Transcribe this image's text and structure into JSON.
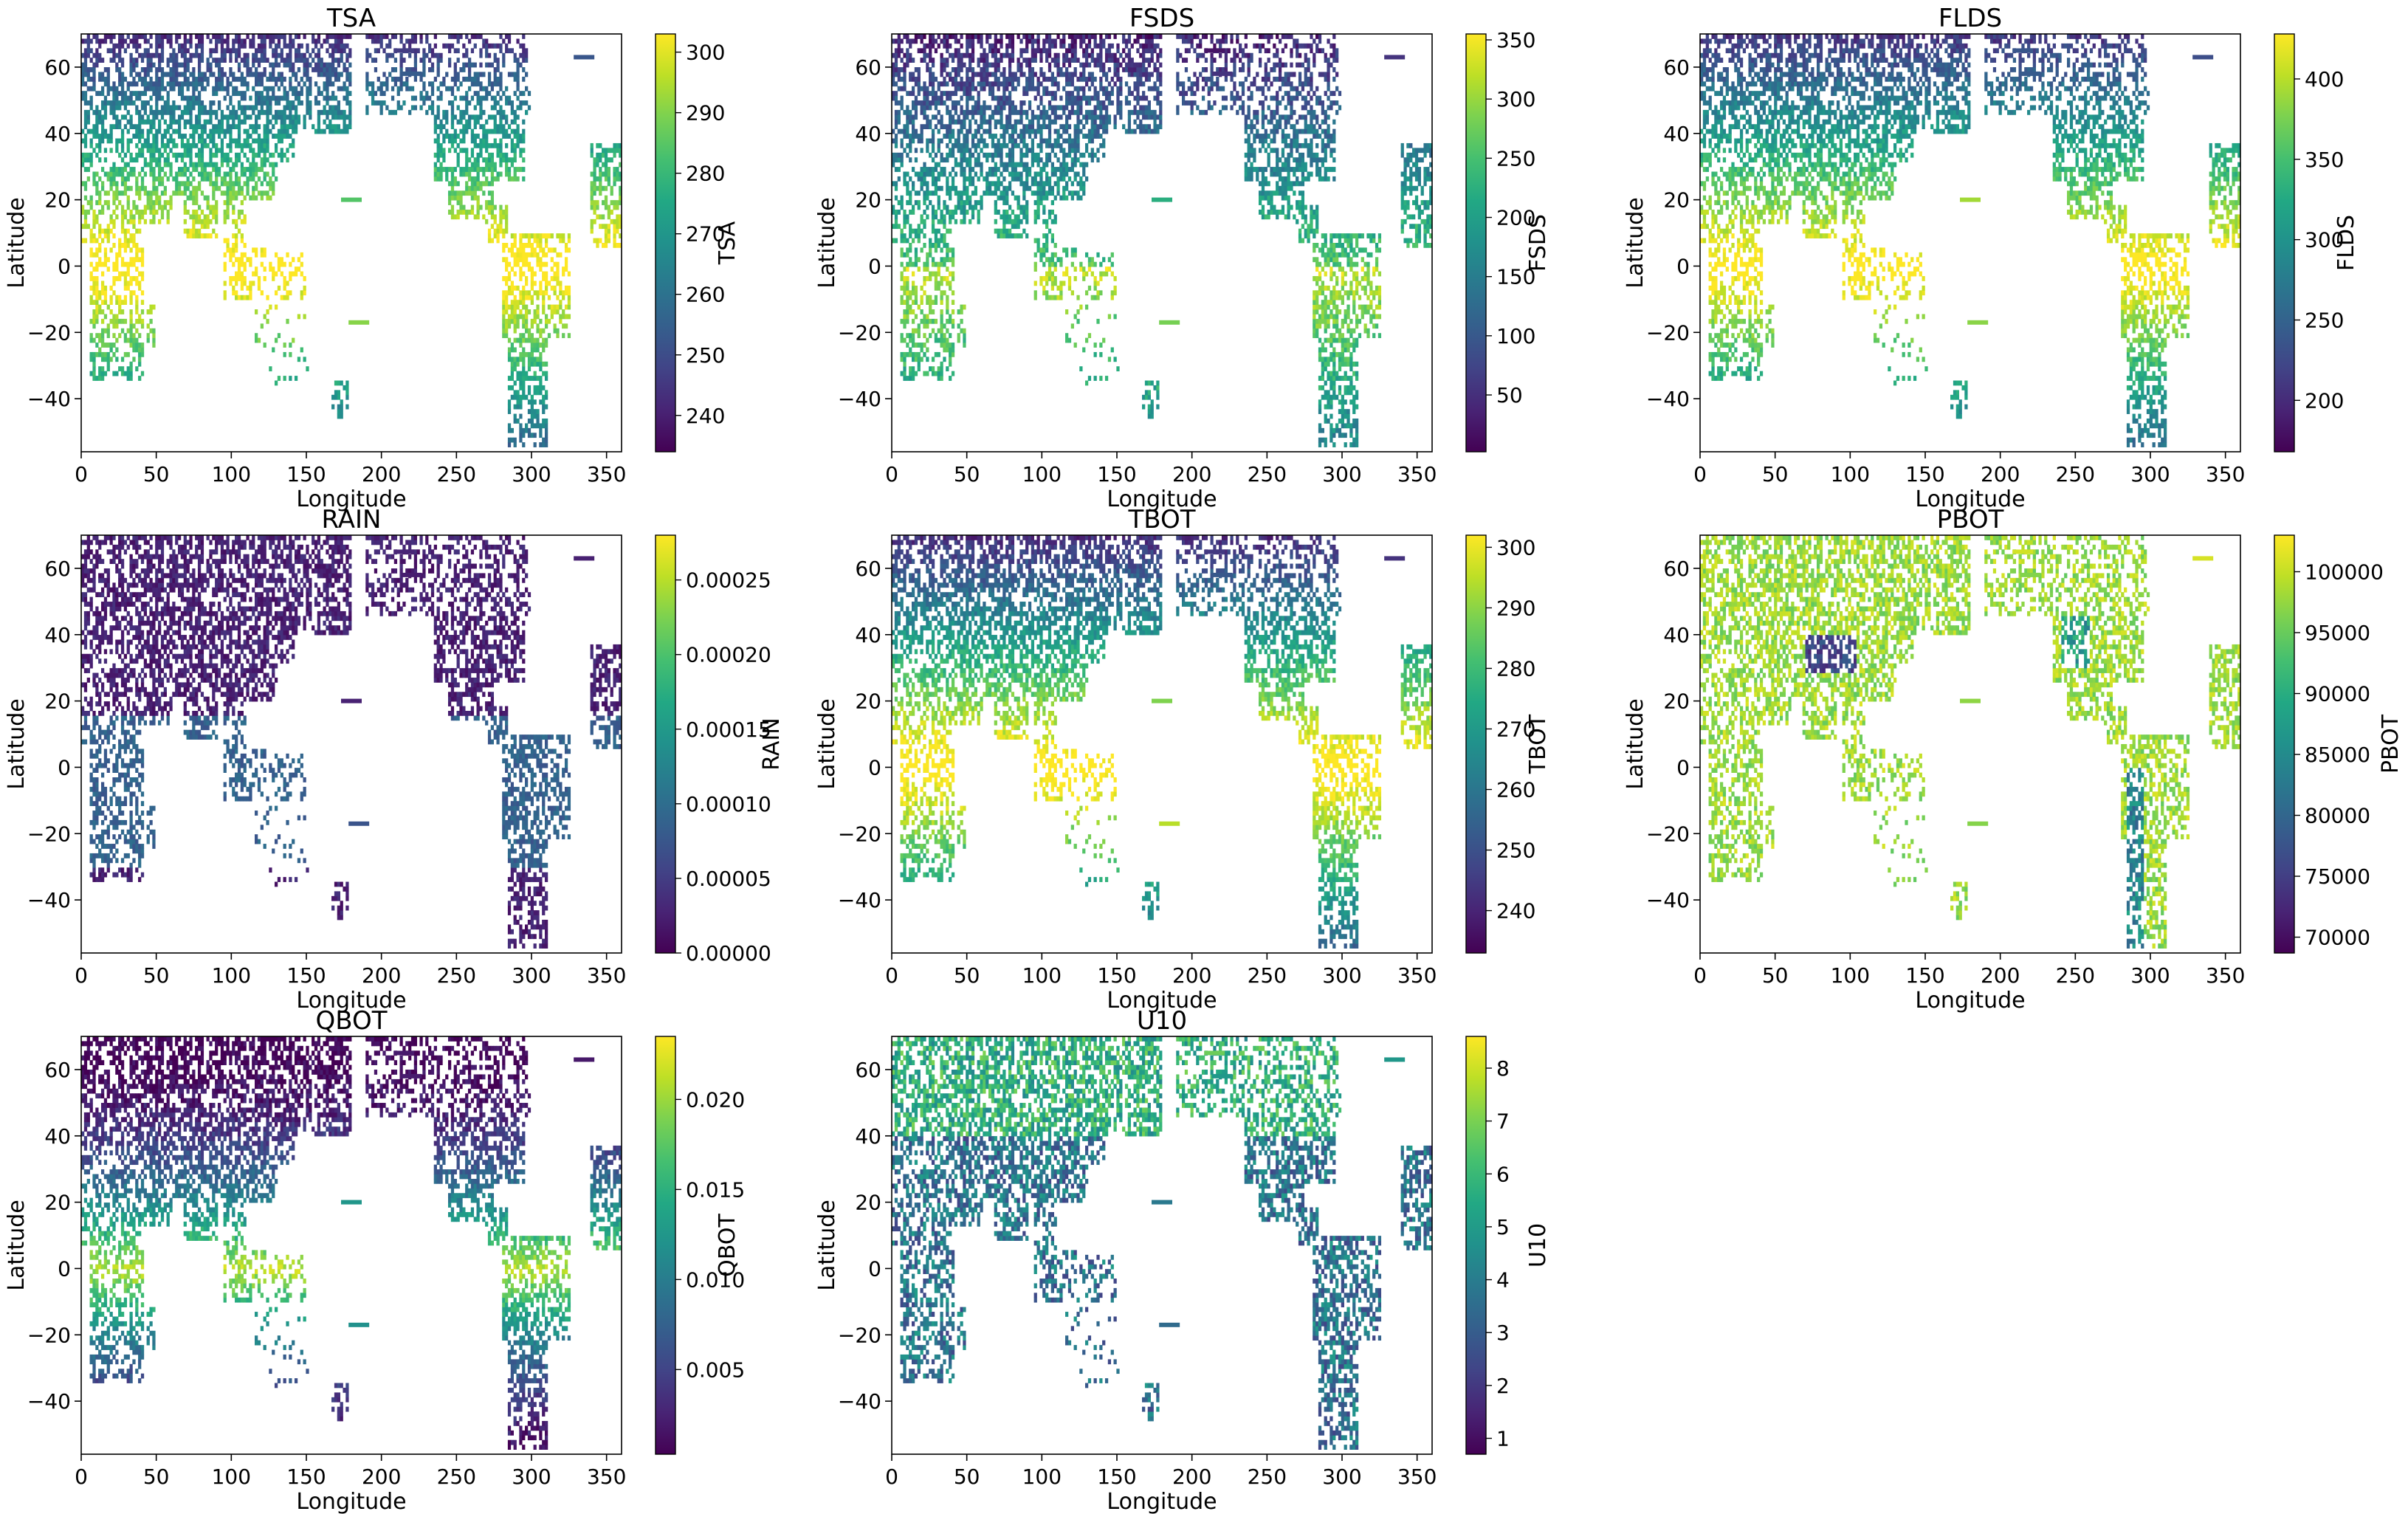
{
  "figure": {
    "colormap": "viridis",
    "background": "#ffffff"
  },
  "chart_data": [
    {
      "type": "heatmap",
      "title": "TSA",
      "xlabel": "Longitude",
      "ylabel": "Latitude",
      "xlim": [
        0,
        360
      ],
      "ylim": [
        -56,
        70
      ],
      "xticks": [
        "0",
        "50",
        "100",
        "150",
        "200",
        "250",
        "300",
        "350"
      ],
      "yticks": [
        "−40",
        "−20",
        "0",
        "20",
        "40",
        "60"
      ],
      "colorbar": {
        "label": "TSA",
        "range": [
          234,
          303
        ],
        "ticks": [
          "240",
          "250",
          "260",
          "270",
          "280",
          "290",
          "300"
        ]
      }
    },
    {
      "type": "heatmap",
      "title": "FSDS",
      "xlabel": "Longitude",
      "ylabel": "Latitude",
      "xlim": [
        0,
        360
      ],
      "ylim": [
        -56,
        70
      ],
      "xticks": [
        "0",
        "50",
        "100",
        "150",
        "200",
        "250",
        "300",
        "350"
      ],
      "yticks": [
        "−40",
        "−20",
        "0",
        "20",
        "40",
        "60"
      ],
      "colorbar": {
        "label": "FSDS",
        "range": [
          2,
          355
        ],
        "ticks": [
          "50",
          "100",
          "150",
          "200",
          "250",
          "300",
          "350"
        ]
      }
    },
    {
      "type": "heatmap",
      "title": "FLDS",
      "xlabel": "Longitude",
      "ylabel": "Latitude",
      "xlim": [
        0,
        360
      ],
      "ylim": [
        -56,
        70
      ],
      "xticks": [
        "0",
        "50",
        "100",
        "150",
        "200",
        "250",
        "300",
        "350"
      ],
      "yticks": [
        "−40",
        "−20",
        "0",
        "20",
        "40",
        "60"
      ],
      "colorbar": {
        "label": "FLDS",
        "range": [
          168,
          428
        ],
        "ticks": [
          "200",
          "250",
          "300",
          "350",
          "400"
        ]
      }
    },
    {
      "type": "heatmap",
      "title": "RAIN",
      "xlabel": "Longitude",
      "ylabel": "Latitude",
      "xlim": [
        0,
        360
      ],
      "ylim": [
        -56,
        70
      ],
      "xticks": [
        "0",
        "50",
        "100",
        "150",
        "200",
        "250",
        "300",
        "350"
      ],
      "yticks": [
        "−40",
        "−20",
        "0",
        "20",
        "40",
        "60"
      ],
      "colorbar": {
        "label": "RAIN",
        "range": [
          0,
          0.00028
        ],
        "ticks": [
          "0.00000",
          "0.00005",
          "0.00010",
          "0.00015",
          "0.00020",
          "0.00025"
        ]
      }
    },
    {
      "type": "heatmap",
      "title": "TBOT",
      "xlabel": "Longitude",
      "ylabel": "Latitude",
      "xlim": [
        0,
        360
      ],
      "ylim": [
        -56,
        70
      ],
      "xticks": [
        "0",
        "50",
        "100",
        "150",
        "200",
        "250",
        "300",
        "350"
      ],
      "yticks": [
        "−40",
        "−20",
        "0",
        "20",
        "40",
        "60"
      ],
      "colorbar": {
        "label": "TBOT",
        "range": [
          233,
          302
        ],
        "ticks": [
          "240",
          "250",
          "260",
          "270",
          "280",
          "290",
          "300"
        ]
      }
    },
    {
      "type": "heatmap",
      "title": "PBOT",
      "xlabel": "Longitude",
      "ylabel": "Latitude",
      "xlim": [
        0,
        360
      ],
      "ylim": [
        -56,
        70
      ],
      "xticks": [
        "0",
        "50",
        "100",
        "150",
        "200",
        "250",
        "300",
        "350"
      ],
      "yticks": [
        "−40",
        "−20",
        "0",
        "20",
        "40",
        "60"
      ],
      "colorbar": {
        "label": "PBOT",
        "range": [
          68700,
          103000
        ],
        "ticks": [
          "70000",
          "75000",
          "80000",
          "85000",
          "90000",
          "95000",
          "100000"
        ]
      }
    },
    {
      "type": "heatmap",
      "title": "QBOT",
      "xlabel": "Longitude",
      "ylabel": "Latitude",
      "xlim": [
        0,
        360
      ],
      "ylim": [
        -56,
        70
      ],
      "xticks": [
        "0",
        "50",
        "100",
        "150",
        "200",
        "250",
        "300",
        "350"
      ],
      "yticks": [
        "−40",
        "−20",
        "0",
        "20",
        "40",
        "60"
      ],
      "colorbar": {
        "label": "QBOT",
        "range": [
          0.0003,
          0.0235
        ],
        "ticks": [
          "0.005",
          "0.010",
          "0.015",
          "0.020"
        ]
      }
    },
    {
      "type": "heatmap",
      "title": "U10",
      "xlabel": "Longitude",
      "ylabel": "Latitude",
      "xlim": [
        0,
        360
      ],
      "ylim": [
        -56,
        70
      ],
      "xticks": [
        "0",
        "50",
        "100",
        "150",
        "200",
        "250",
        "300",
        "350"
      ],
      "yticks": [
        "−40",
        "−20",
        "0",
        "20",
        "40",
        "60"
      ],
      "colorbar": {
        "label": "U10",
        "range": [
          0.7,
          8.6
        ],
        "ticks": [
          "1",
          "2",
          "3",
          "4",
          "5",
          "6",
          "7",
          "8"
        ]
      }
    }
  ]
}
